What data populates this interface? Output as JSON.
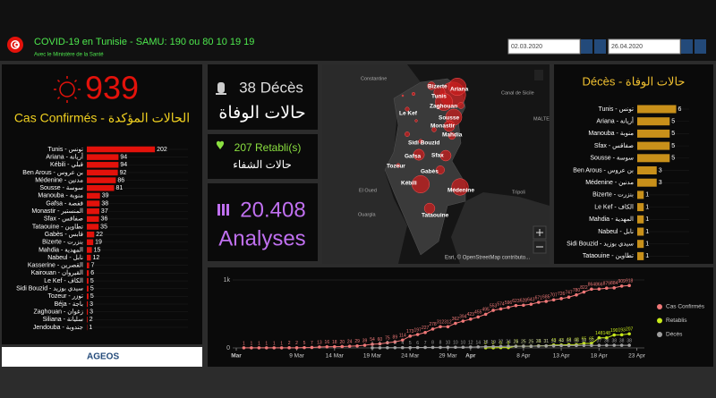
{
  "header": {
    "title": "COVID-19 en Tunisie - SAMU: 190 ou 80 10 19 19",
    "subtitle": "Avec le Ministère de la Santé",
    "date_from": "02.03.2020",
    "date_to": "26.04.2020"
  },
  "kpis": {
    "confirmed": "939",
    "deaths": "38 Décès",
    "deaths_ar": "حالات الوفاة",
    "recovered": "207 Retabli(s)",
    "recovered_ar": "حالات الشفاء",
    "tests": "20.408",
    "tests_label": "Analyses"
  },
  "map": {
    "labels": [
      "Bizerte",
      "Tunis",
      "Ariana",
      "Le Kef",
      "Zaghouan",
      "Sousse",
      "Monastir",
      "Mahdia",
      "Sidi Bouzid",
      "Gafsa",
      "Sfax",
      "Tozeur",
      "Gabès",
      "Kébili",
      "Médenine",
      "Tataouine",
      "Constantine",
      "Canal de Sicile",
      "MALTE",
      "El Oued",
      "Tripoli",
      "Ouargla"
    ],
    "attribution": "Esri, © OpenStreetMap contributo..."
  },
  "logo": "AGEOS",
  "chart_data": [
    {
      "type": "bar",
      "orientation": "horizontal",
      "title": "Cas Confirmés - الحالات المؤكدة",
      "color": "#e3120b",
      "xlim": [
        0,
        300
      ],
      "categories": [
        "Tunis - تونس",
        "Ariana - أريانة",
        "Kébili - قبلي",
        "Ben Arous - بن عروس",
        "Médenine - مدنين",
        "Sousse - سوسة",
        "Manouba - منوبة",
        "Gafsa - قفصة",
        "Monastir - المنستير",
        "Sfax - صفاقس",
        "Tataouine - تطاوين",
        "Gabès - قابس",
        "Bizerte - بنزرت",
        "Mahdia - المهدية",
        "Nabeul - نابل",
        "Kasserine - القصرين",
        "Kairouan - القيروان",
        "Le Kef - الكاف",
        "Sidi Bouzid - سيدي بوزيد",
        "Tozeur - توزر",
        "Béja - باجة",
        "Zaghouan - زغوان",
        "Siliana - سليانة",
        "Jendouba - جندوبة"
      ],
      "values": [
        202,
        94,
        94,
        92,
        86,
        81,
        39,
        38,
        37,
        36,
        35,
        22,
        19,
        15,
        12,
        7,
        6,
        5,
        5,
        5,
        3,
        3,
        2,
        1
      ]
    },
    {
      "type": "bar",
      "orientation": "horizontal",
      "title": "Décès - حالات الوفاة",
      "color": "#c8901a",
      "xlim": [
        0,
        8
      ],
      "categories": [
        "Tunis - تونس",
        "Ariana - أريانة",
        "Manouba - منوبة",
        "Sfax - صفاقس",
        "Sousse - سوسة",
        "Ben Arous - بن عروس",
        "Médenine - مدنين",
        "Bizerte - بنزرت",
        "Le Kef - الكاف",
        "Mahdia - المهدية",
        "Nabeul - نابل",
        "Sidi Bouzid - سيدي بوزيد",
        "Tataouine - تطاوين"
      ],
      "values": [
        6,
        5,
        5,
        5,
        5,
        3,
        3,
        1,
        1,
        1,
        1,
        1,
        1
      ]
    },
    {
      "type": "line",
      "xlim": [
        "03-01",
        "04-24"
      ],
      "ylim": [
        0,
        1000
      ],
      "yticks": [
        0,
        {
          "value": 1000,
          "label": "1k"
        }
      ],
      "grid": true,
      "legend": "right",
      "xticks": [
        {
          "value": "03-01",
          "label": "Mar"
        },
        {
          "value": "03-09",
          "label": "9 Mar"
        },
        {
          "value": "03-14",
          "label": "14 Mar"
        },
        {
          "value": "03-19",
          "label": "19 Mar"
        },
        {
          "value": "03-24",
          "label": "24 Mar"
        },
        {
          "value": "03-29",
          "label": "29 Mar"
        },
        {
          "value": "04-01",
          "label": "Apr"
        },
        {
          "value": "04-08",
          "label": "8 Apr"
        },
        {
          "value": "04-13",
          "label": "13 Apr"
        },
        {
          "value": "04-18",
          "label": "18 Apr"
        },
        {
          "value": "04-23",
          "label": "23 Apr"
        }
      ],
      "x": [
        "03-02",
        "03-03",
        "03-04",
        "03-05",
        "03-06",
        "03-07",
        "03-08",
        "03-09",
        "03-10",
        "03-11",
        "03-12",
        "03-13",
        "03-14",
        "03-15",
        "03-16",
        "03-17",
        "03-18",
        "03-19",
        "03-20",
        "03-21",
        "03-22",
        "03-23",
        "03-24",
        "03-25",
        "03-26",
        "03-27",
        "03-28",
        "03-29",
        "03-30",
        "03-31",
        "04-01",
        "04-02",
        "04-03",
        "04-04",
        "04-05",
        "04-06",
        "04-07",
        "04-08",
        "04-09",
        "04-10",
        "04-11",
        "04-12",
        "04-13",
        "04-14",
        "04-15",
        "04-16",
        "04-17",
        "04-18",
        "04-19",
        "04-20",
        "04-21",
        "04-22"
      ],
      "series": [
        {
          "name": "Cas Confirmés",
          "color": "#f07878",
          "values": [
            1,
            1,
            1,
            1,
            1,
            1,
            2,
            2,
            5,
            7,
            13,
            16,
            18,
            20,
            24,
            29,
            39,
            54,
            60,
            75,
            89,
            114,
            173,
            197,
            227,
            278,
            312,
            312,
            362,
            394,
            423,
            455,
            495,
            553,
            574,
            596,
            623,
            628,
            643,
            671,
            685,
            707,
            726,
            747,
            780,
            822,
            864,
            866,
            879,
            884,
            909,
            918
          ]
        },
        {
          "name": "Retablis",
          "color": "#c8ea1a",
          "values": [
            null,
            null,
            null,
            null,
            null,
            null,
            null,
            null,
            null,
            null,
            null,
            null,
            null,
            null,
            null,
            null,
            null,
            null,
            null,
            null,
            null,
            null,
            null,
            null,
            null,
            null,
            null,
            null,
            null,
            null,
            null,
            null,
            2,
            2,
            5,
            5,
            25,
            25,
            25,
            31,
            31,
            43,
            43,
            48,
            48,
            65,
            65,
            148,
            148,
            190,
            193,
            207
          ]
        },
        {
          "name": "Décès",
          "color": "#a0a0a0",
          "values": [
            null,
            null,
            null,
            null,
            null,
            null,
            null,
            null,
            null,
            null,
            null,
            null,
            null,
            null,
            null,
            null,
            null,
            1,
            1,
            3,
            3,
            4,
            5,
            6,
            7,
            8,
            8,
            10,
            10,
            10,
            12,
            14,
            18,
            19,
            22,
            24,
            24,
            25,
            25,
            28,
            31,
            31,
            34,
            34,
            35,
            36,
            37,
            37,
            38,
            38,
            38,
            38
          ]
        }
      ]
    }
  ]
}
